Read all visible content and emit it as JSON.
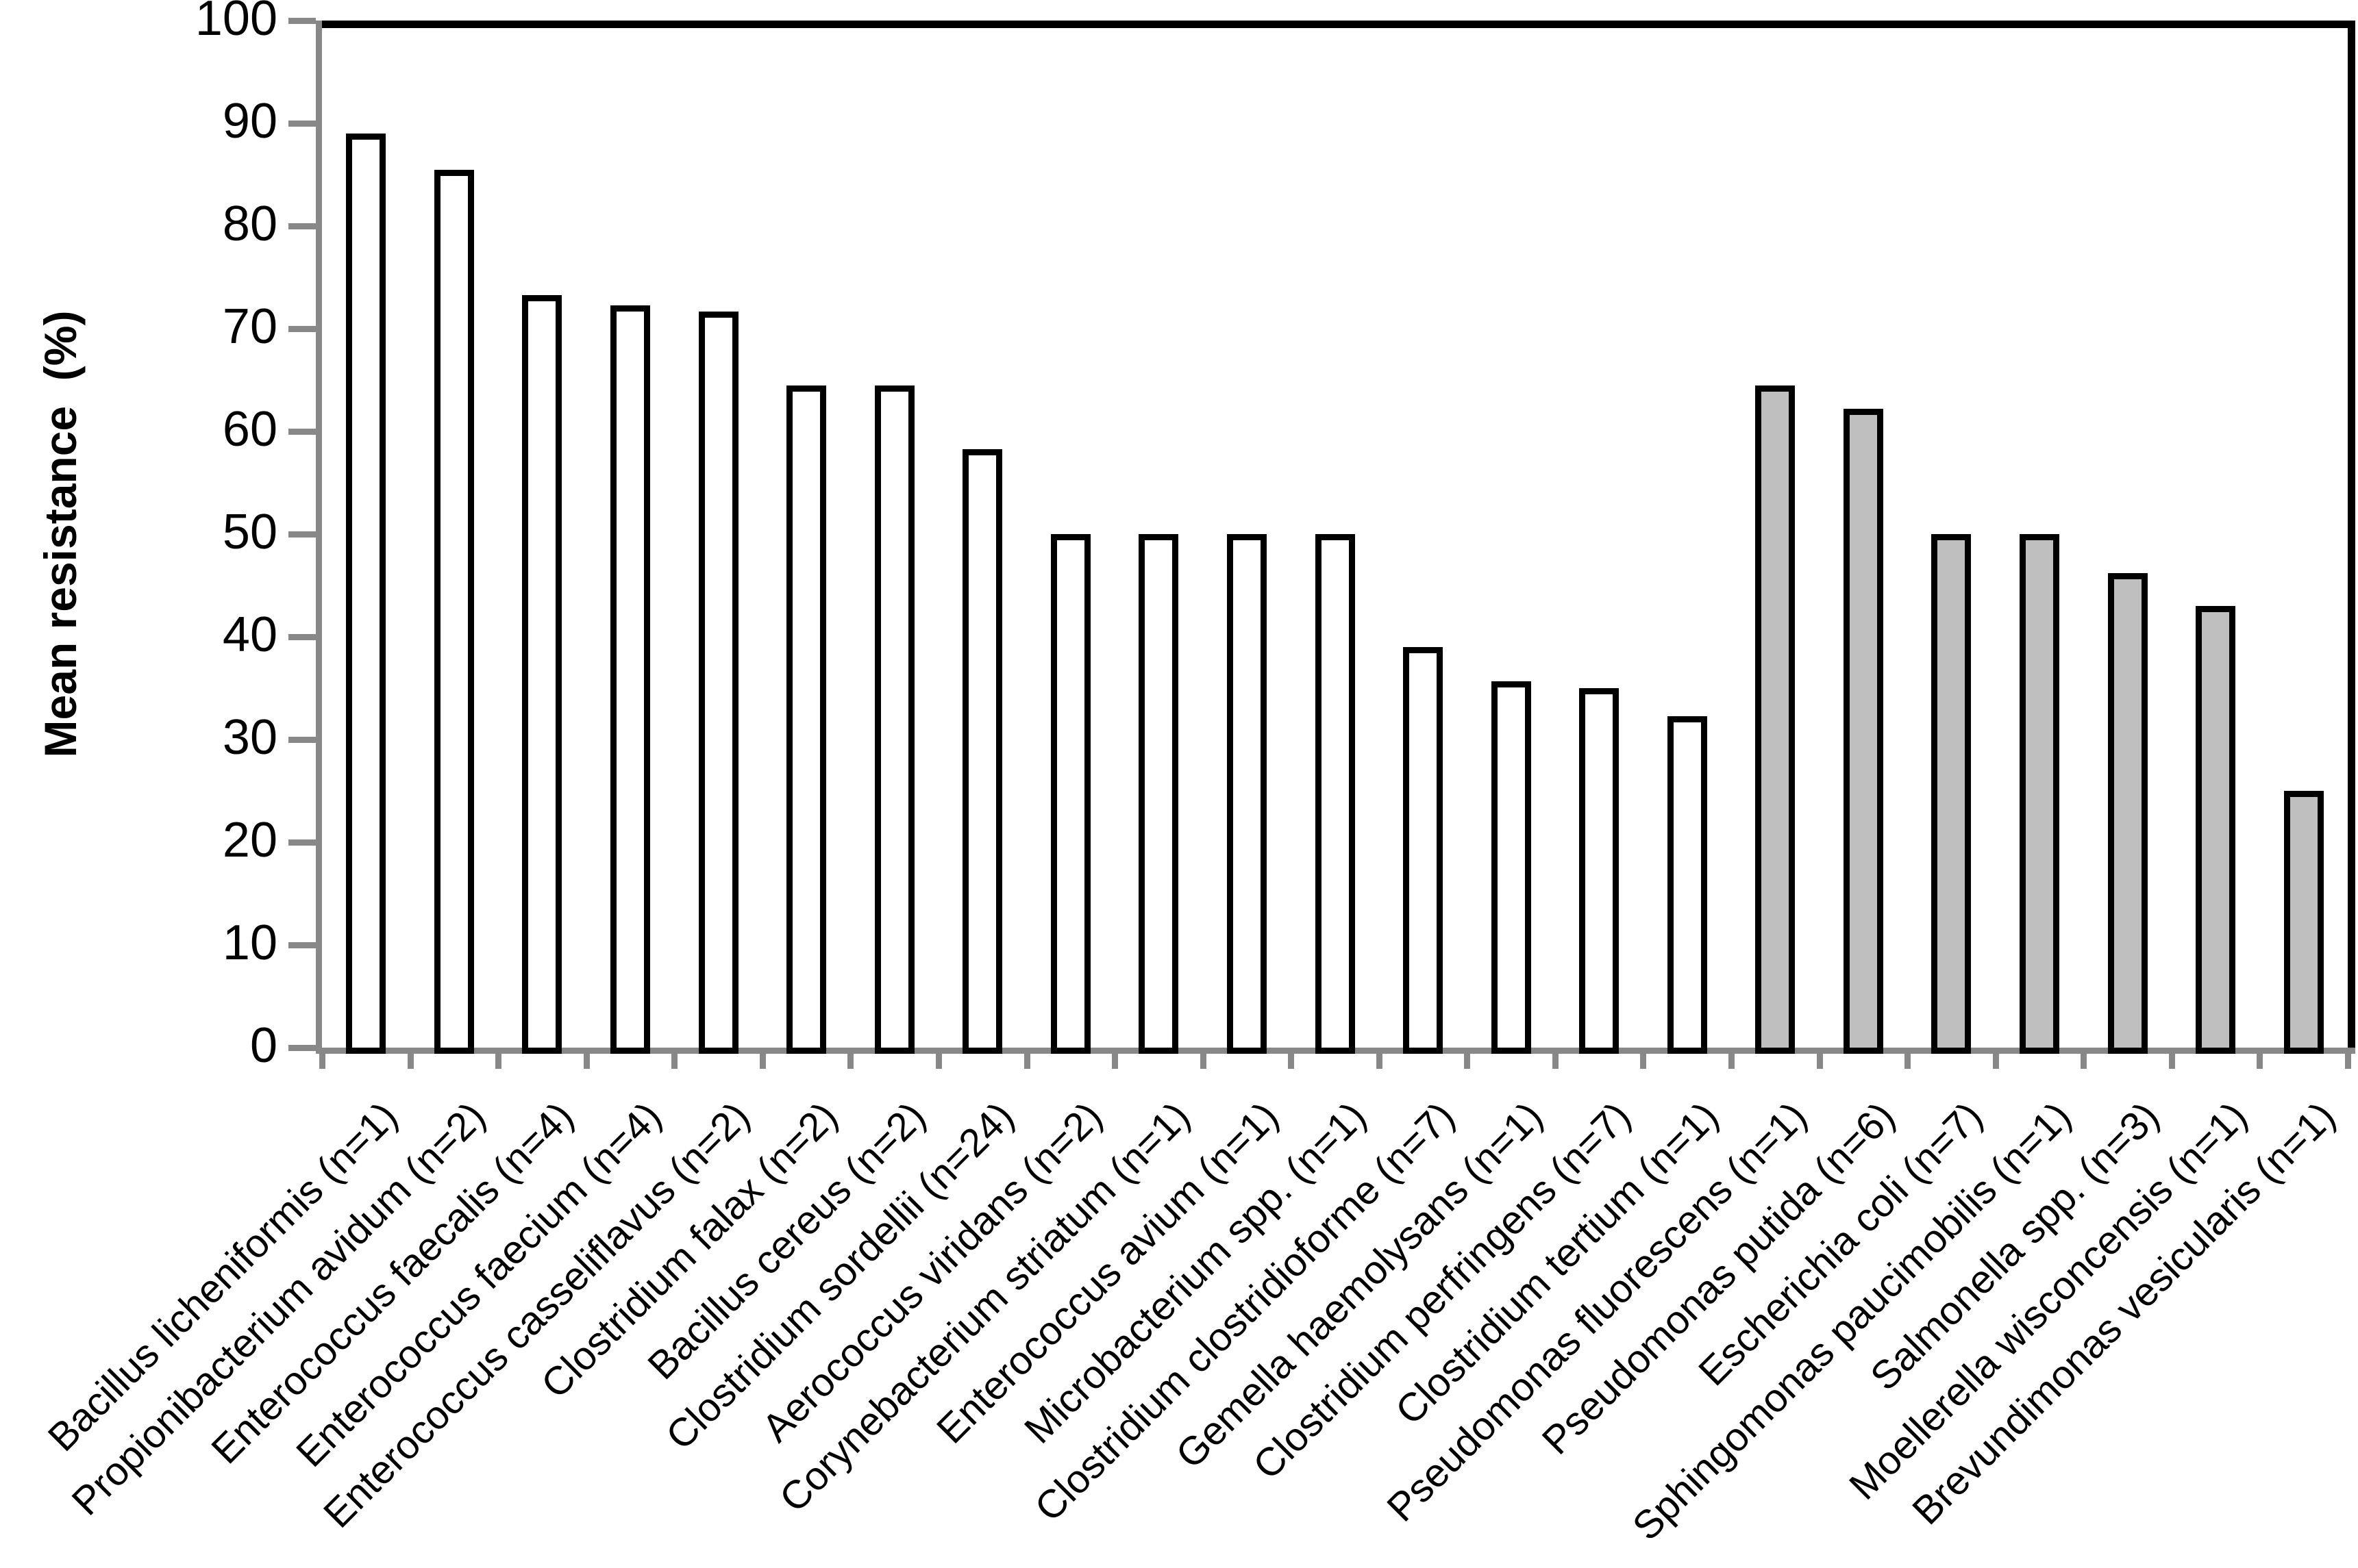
{
  "chart_data": {
    "type": "bar",
    "title": "",
    "xlabel": "",
    "ylabel": "Mean resistance  (%)",
    "ylim": [
      0,
      100
    ],
    "y_tick_step": 10,
    "y_ticks": [
      0,
      10,
      20,
      30,
      40,
      50,
      60,
      70,
      80,
      90,
      100
    ],
    "grid": false,
    "legend_position": "none",
    "bar_outline_color": "#000000",
    "axis_color": "#888888",
    "frame_color": "#000000",
    "fill_colors": {
      "white": "#FFFFFF",
      "gray": "#BFBFBF"
    },
    "categories": [
      "Bacillus licheniformis (n=1)",
      "Propionibacterium avidum (n=2)",
      "Enterococcus faecalis (n=4)",
      "Enterococcus faecium (n=4)",
      "Enterococcus casseliflavus (n=2)",
      "Clostridium falax (n=2)",
      "Bacillus cereus (n=2)",
      "Clostridium sordellii (n=24)",
      "Aerococcus viridans (n=2)",
      "Corynebacterium striatum (n=1)",
      "Enterococcus avium (n=1)",
      "Microbacterium spp. (n=1)",
      "Clostridium clostridioforme (n=7)",
      "Gemella haemolysans (n=1)",
      "Clostridium perfringens (n=7)",
      "Clostridium tertium (n=1)",
      "Pseudomonas fluorescens (n=1)",
      "Pseudomonas putida (n=6)",
      "Escherichia coli (n=7)",
      "Sphingomonas paucimobilis (n=1)",
      "Salmonella spp. (n=3)",
      "Moellerella wisconcensis (n=1)",
      "Brevundimonas vesicularis (n=1)"
    ],
    "values": [
      89,
      85.5,
      73.3,
      72.3,
      71.7,
      64.5,
      64.5,
      58.3,
      50,
      50,
      50,
      50,
      39,
      35.7,
      35,
      32.3,
      64.5,
      62.2,
      50,
      50,
      46.2,
      43,
      25
    ],
    "fills": [
      "white",
      "white",
      "white",
      "white",
      "white",
      "white",
      "white",
      "white",
      "white",
      "white",
      "white",
      "white",
      "white",
      "white",
      "white",
      "white",
      "gray",
      "gray",
      "gray",
      "gray",
      "gray",
      "gray",
      "gray"
    ]
  }
}
